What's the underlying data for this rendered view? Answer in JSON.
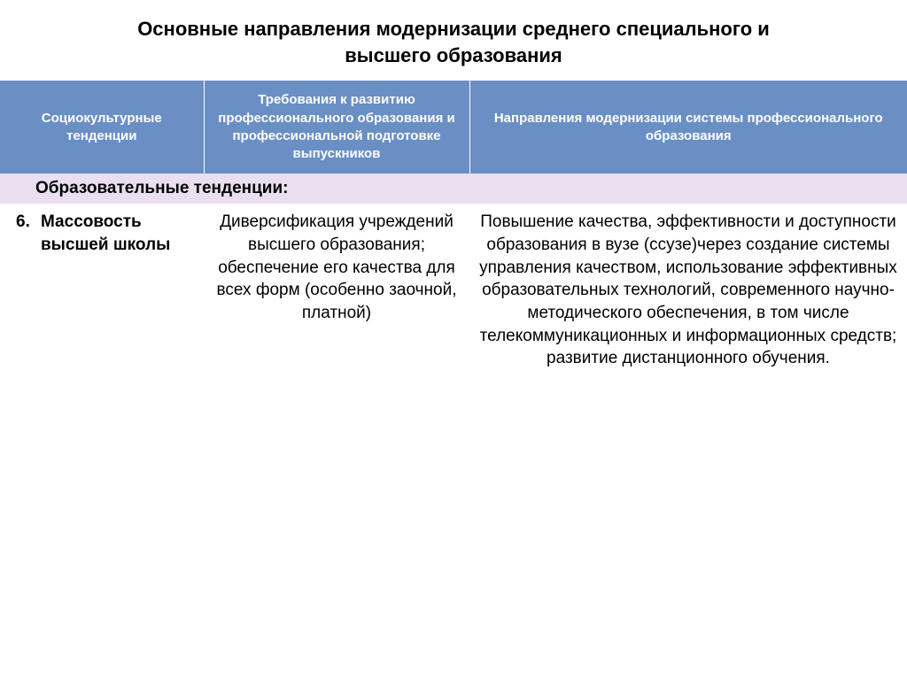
{
  "title": "Основные направления модернизации среднего специального и высшего образования",
  "header": {
    "col1": "Социокультурные тенденции",
    "col2": "Требования к развитию профессионального образования и профессиональной подготовке выпускников",
    "col3": "Направления модернизации системы профессионального образования"
  },
  "section": "Образовательные  тенденции:",
  "row": {
    "num": "6.",
    "label": "Массовость высшей школы",
    "col2": "Диверсификация учреждений высшего образования; обеспечение его качества для всех форм (особенно заочной, платной)",
    "col3": "Повышение качества, эффективности и доступности образования в вузе (ссузе)через создание системы управления качеством, использование эффективных образовательных технологий, современного научно-методического обеспечения, в том числе телекоммуникационных и информационных средств; развитие дистанционного обучения."
  },
  "colors": {
    "header_bg": "#6a8fc5",
    "section_bg": "#e9dff0"
  }
}
